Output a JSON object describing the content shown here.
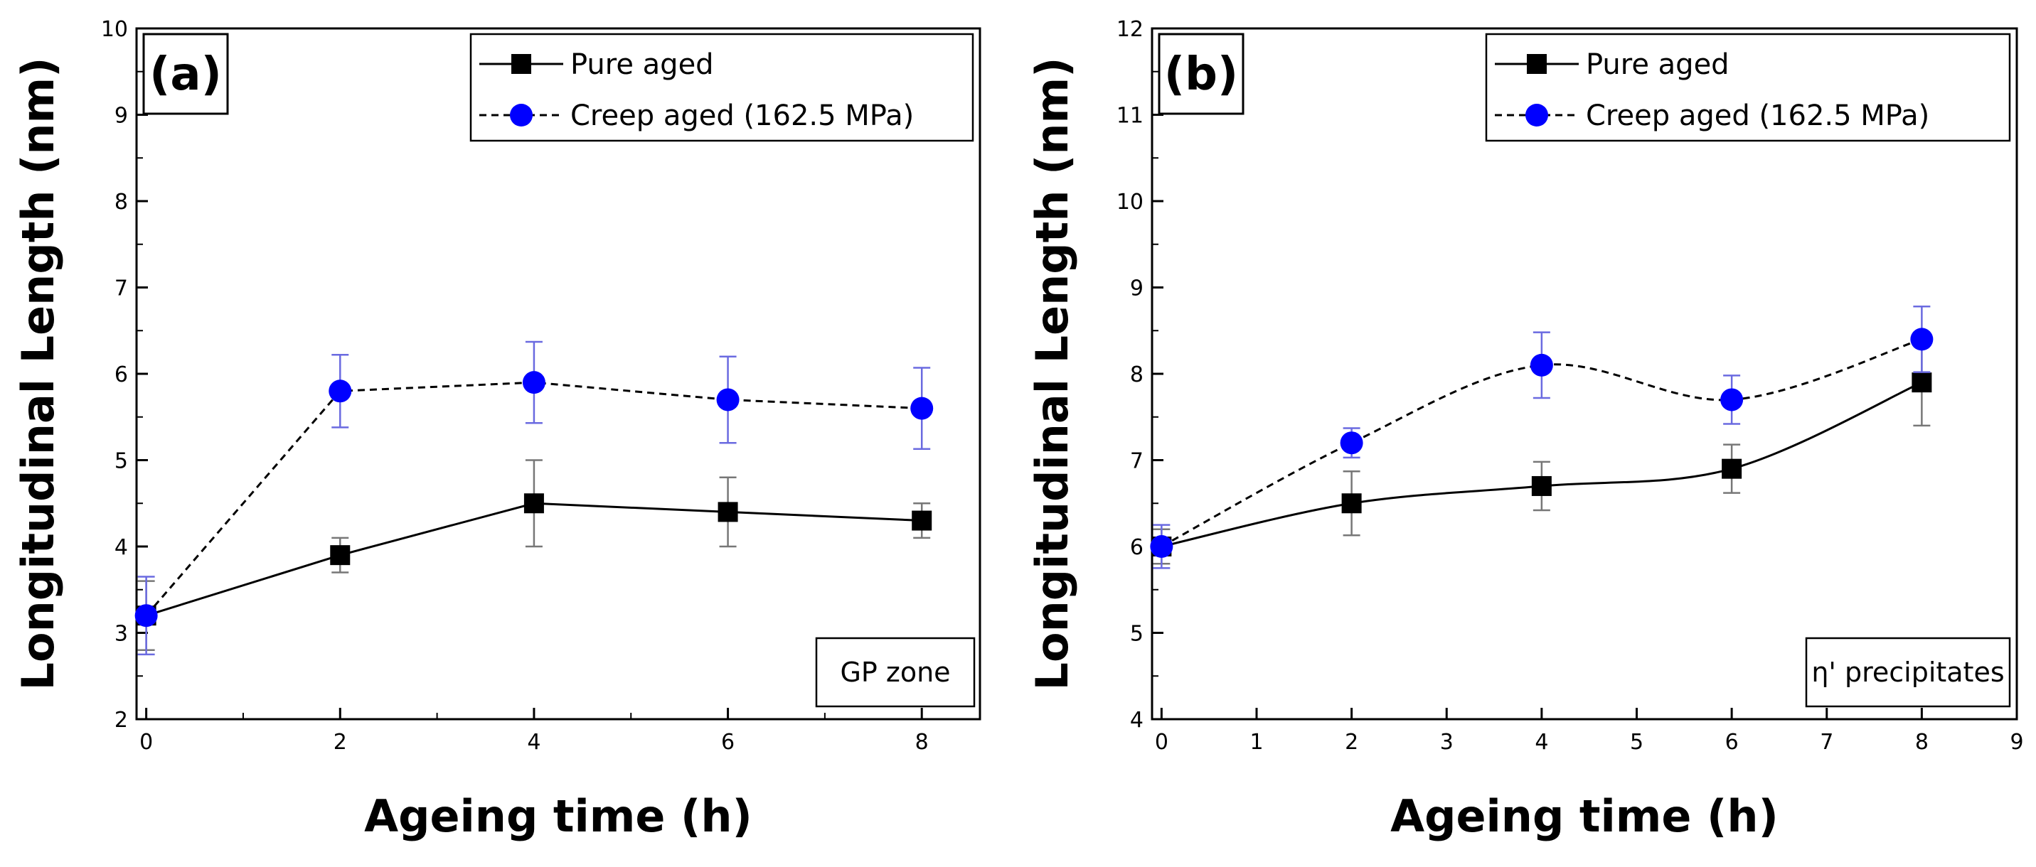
{
  "chart_data": [
    {
      "type": "line",
      "panel_label": "(a)",
      "annotation": "GP zone",
      "xlabel": "Ageing time (h)",
      "ylabel": "Longitudinal Length (nm)",
      "xlim": [
        -0.1,
        8.6
      ],
      "ylim": [
        2,
        10
      ],
      "xticks": [
        0,
        2,
        4,
        6,
        8
      ],
      "xminor": [
        1,
        3,
        5,
        7
      ],
      "yticks": [
        2,
        3,
        4,
        5,
        6,
        7,
        8,
        9,
        10
      ],
      "legend_position": "top-right",
      "series": [
        {
          "name": "Pure aged",
          "marker": "square",
          "line": "solid",
          "smooth": false,
          "color": "#000000",
          "error_color": "#777777",
          "x": [
            0,
            2,
            4,
            6,
            8
          ],
          "values": [
            3.2,
            3.9,
            4.5,
            4.4,
            4.3
          ],
          "errors": [
            0.4,
            0.2,
            0.5,
            0.4,
            0.2
          ]
        },
        {
          "name": "Creep aged (162.5 MPa)",
          "marker": "circle",
          "line": "dashed",
          "smooth": false,
          "color": "#0000ff",
          "error_color": "#6a6ae0",
          "x": [
            0,
            2,
            4,
            6,
            8
          ],
          "values": [
            3.2,
            5.8,
            5.9,
            5.7,
            5.6
          ],
          "errors": [
            0.45,
            0.42,
            0.47,
            0.5,
            0.47
          ]
        }
      ]
    },
    {
      "type": "line",
      "panel_label": "(b)",
      "annotation": "η' precipitates",
      "xlabel": "Ageing time (h)",
      "ylabel": "Longitudinal Length (nm)",
      "xlim": [
        -0.1,
        9
      ],
      "ylim": [
        4,
        12
      ],
      "xticks": [
        0,
        1,
        2,
        3,
        4,
        5,
        6,
        7,
        8,
        9
      ],
      "xminor": [],
      "yticks": [
        4,
        5,
        6,
        7,
        8,
        9,
        10,
        11,
        12
      ],
      "legend_position": "top-right",
      "series": [
        {
          "name": "Pure aged",
          "marker": "square",
          "line": "solid",
          "smooth": true,
          "color": "#000000",
          "error_color": "#777777",
          "x": [
            0,
            2,
            4,
            6,
            8
          ],
          "values": [
            6.0,
            6.5,
            6.7,
            6.9,
            7.9
          ],
          "errors": [
            0.2,
            0.37,
            0.28,
            0.28,
            0.5
          ]
        },
        {
          "name": "Creep aged (162.5 MPa)",
          "marker": "circle",
          "line": "dashed",
          "smooth": true,
          "color": "#0000ff",
          "error_color": "#6a6ae0",
          "x": [
            0,
            2,
            4,
            6,
            8
          ],
          "values": [
            6.0,
            7.2,
            8.1,
            7.7,
            8.4
          ],
          "errors": [
            0.25,
            0.17,
            0.38,
            0.28,
            0.38
          ]
        }
      ]
    }
  ]
}
